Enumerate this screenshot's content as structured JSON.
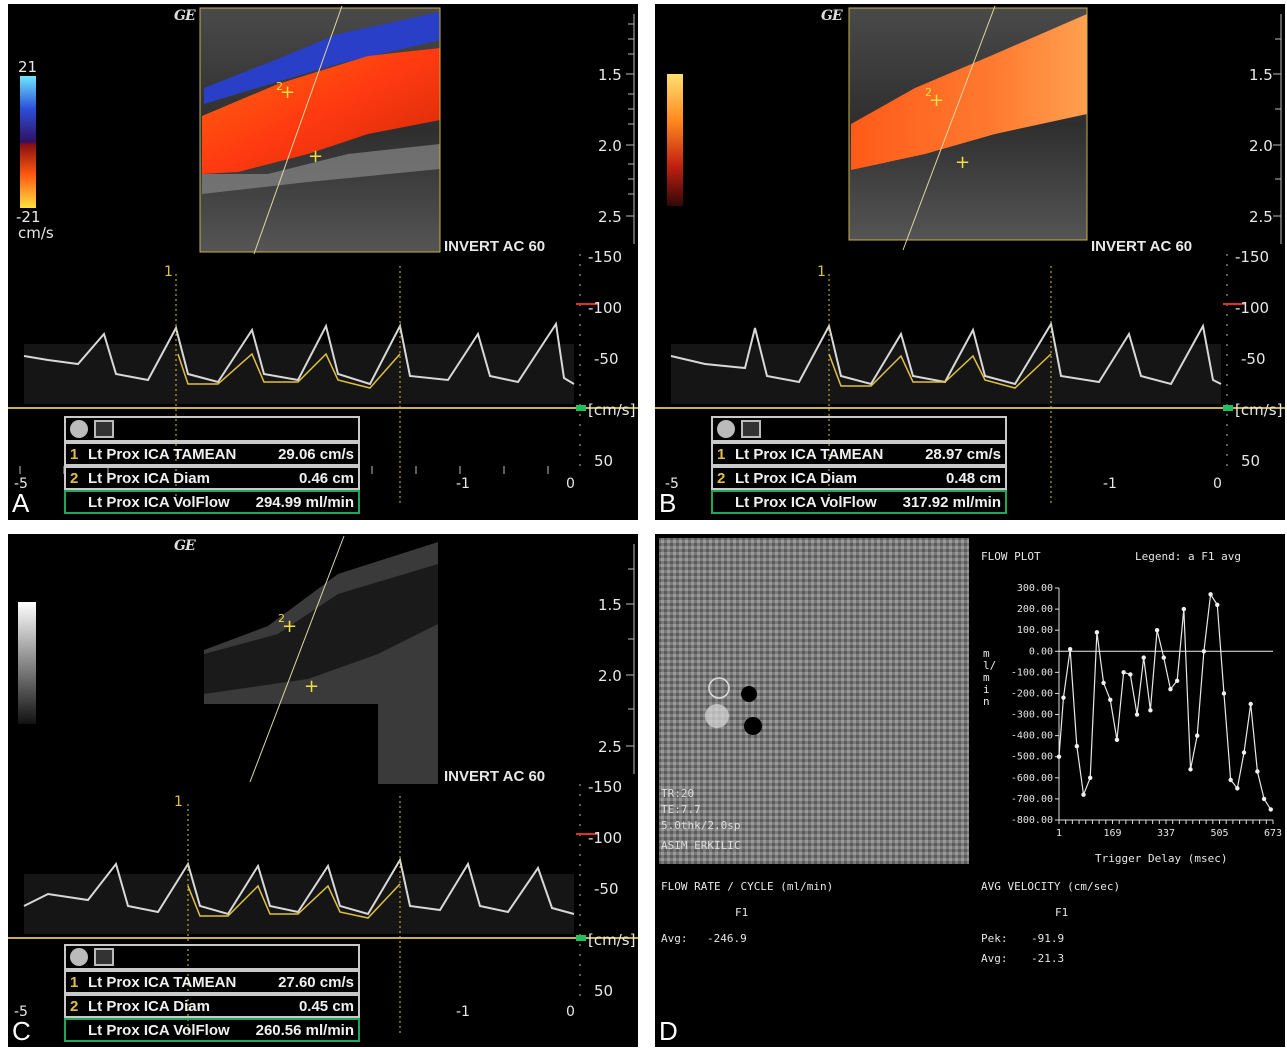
{
  "panels": {
    "a": {
      "letter": "A",
      "brand": "GE",
      "scale_top": "21",
      "scale_bottom": "-21",
      "scale_unit": "cm/s",
      "invert": "INVERT  AC 60",
      "depth_labels": [
        "1.5",
        "2.0",
        "2.5"
      ],
      "vel_labels": [
        "-150",
        "-100",
        "-50",
        "[cm/s]",
        "50"
      ],
      "time_labels": [
        "-5",
        "-1",
        "0"
      ],
      "marker": "1",
      "measurements": [
        {
          "num": "1",
          "name": "Lt Prox ICA TAMEAN",
          "value": "29.06 cm/s"
        },
        {
          "num": "2",
          "name": "Lt Prox ICA Diam",
          "value": "0.46 cm"
        },
        {
          "num": "",
          "name": "Lt Prox ICA VolFlow",
          "value": "294.99 ml/min"
        }
      ]
    },
    "b": {
      "letter": "B",
      "brand": "GE",
      "invert": "INVERT  AC 60",
      "depth_labels": [
        "1.5",
        "2.0",
        "2.5"
      ],
      "vel_labels": [
        "-150",
        "-100",
        "-50",
        "[cm/s]",
        "50"
      ],
      "time_labels": [
        "-5",
        "-1",
        "0"
      ],
      "marker": "1",
      "measurements": [
        {
          "num": "1",
          "name": "Lt Prox ICA TAMEAN",
          "value": "28.97 cm/s"
        },
        {
          "num": "2",
          "name": "Lt Prox ICA Diam",
          "value": "0.48 cm"
        },
        {
          "num": "",
          "name": "Lt Prox ICA VolFlow",
          "value": "317.92 ml/min"
        }
      ]
    },
    "c": {
      "letter": "C",
      "brand": "GE",
      "invert": "INVERT  AC 60",
      "depth_labels": [
        "1.5",
        "2.0",
        "2.5"
      ],
      "vel_labels": [
        "-150",
        "-100",
        "-50",
        "[cm/s]",
        "50"
      ],
      "time_labels": [
        "-5",
        "-1",
        "0"
      ],
      "marker": "1",
      "measurements": [
        {
          "num": "1",
          "name": "Lt Prox ICA TAMEAN",
          "value": "27.60 cm/s"
        },
        {
          "num": "2",
          "name": "Lt Prox ICA Diam",
          "value": "0.45 cm"
        },
        {
          "num": "",
          "name": "Lt Prox ICA VolFlow",
          "value": "260.56 ml/min"
        }
      ]
    },
    "d": {
      "letter": "D",
      "mri_overlay": [
        "TR:20",
        "TE:7.7",
        "5.0thk/2.0sp",
        "ASIM ERKILIC"
      ],
      "plot_title": "FLOW PLOT",
      "legend": "Legend: a    F1 avg",
      "y_unit": "ml/min",
      "y_ticks": [
        "300.00",
        "200.00",
        "100.00",
        "0.00",
        "-100.00",
        "-200.00",
        "-300.00",
        "-400.00",
        "-500.00",
        "-600.00",
        "-700.00",
        "-800.00"
      ],
      "x_ticks": [
        "1",
        "169",
        "337",
        "505",
        "673"
      ],
      "x_label": "Trigger Delay (msec)",
      "flow_header": "FLOW RATE / CYCLE (ml/min)",
      "flow_col": "F1",
      "flow_avg_label": "Avg:",
      "flow_avg_value": "-246.9",
      "vel_header": "AVG VELOCITY (cm/sec)",
      "vel_col": "F1",
      "vel_pek_label": "Pek:",
      "vel_pek_value": "-91.9",
      "vel_avg_label": "Avg:",
      "vel_avg_value": "-21.3"
    }
  },
  "chart_data": {
    "type": "line",
    "title": "FLOW PLOT",
    "xlabel": "Trigger Delay (msec)",
    "ylabel": "ml/min",
    "ylim": [
      -800,
      300
    ],
    "xlim": [
      1,
      673
    ],
    "grid": false,
    "legend": "top-right",
    "series": [
      {
        "name": "F1 avg",
        "x": [
          1,
          15,
          36,
          57,
          78,
          99,
          120,
          141,
          162,
          183,
          204,
          225,
          246,
          267,
          288,
          309,
          330,
          351,
          372,
          393,
          414,
          435,
          456,
          477,
          498,
          519,
          540,
          561,
          582,
          603,
          624,
          645,
          666
        ],
        "values": [
          -500,
          -220,
          10,
          -450,
          -680,
          -600,
          90,
          -150,
          -230,
          -420,
          -100,
          -110,
          -300,
          -30,
          -280,
          100,
          -30,
          -180,
          -140,
          200,
          -560,
          -400,
          0,
          270,
          220,
          -200,
          -610,
          -650,
          -480,
          -250,
          -570,
          -700,
          -750
        ]
      }
    ]
  }
}
